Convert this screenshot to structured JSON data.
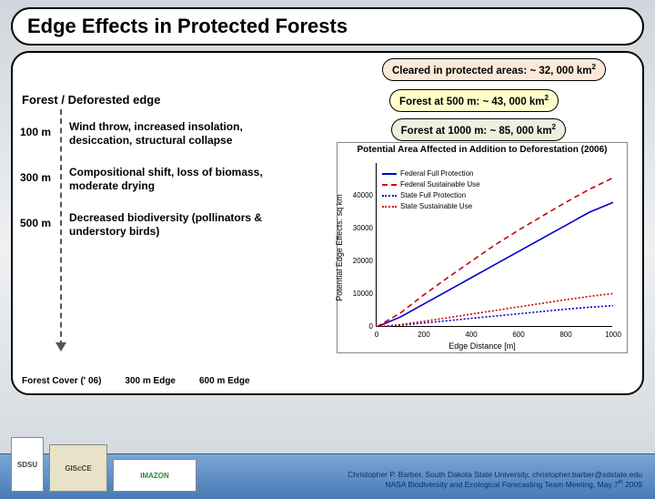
{
  "title": "Edge Effects in Protected Forests",
  "badges": {
    "cleared": "Cleared in protected areas: ~ 32, 000 km",
    "f500": "Forest at 500 m: ~ 43, 000 km",
    "f1000": "Forest at 1000 m: ~ 85, 000 km",
    "sup": "2"
  },
  "edge_header": "Forest / Deforested edge",
  "rows": {
    "d100": {
      "label": "100 m",
      "desc": "Wind throw, increased insolation, desiccation, structural collapse"
    },
    "d300": {
      "label": "300 m",
      "desc": "Compositional shift, loss of biomass, moderate drying"
    },
    "d500": {
      "label": "500 m",
      "desc": "Decreased biodiversity (pollinators & understory birds)"
    }
  },
  "bottom_labels": {
    "a": "Forest Cover (' 06)",
    "b": "300 m Edge",
    "c": "600 m Edge"
  },
  "chart": {
    "title": "Potential Area Affected in Addition to Deforestation (2006)",
    "xlabel": "Edge Distance [m]",
    "ylabel": "Potential Edge Effects: sq km",
    "xlim": [
      0,
      1000
    ],
    "ylim": [
      0,
      50000
    ],
    "xticks": [
      0,
      200,
      400,
      600,
      800,
      1000
    ],
    "yticks": [
      0,
      10000,
      20000,
      30000,
      40000
    ],
    "series": [
      {
        "name": "Federal Full Protection",
        "color": "#0000cc",
        "dash": "none",
        "data": [
          [
            0,
            0
          ],
          [
            100,
            3000
          ],
          [
            200,
            7000
          ],
          [
            300,
            11000
          ],
          [
            400,
            15000
          ],
          [
            500,
            19000
          ],
          [
            600,
            23000
          ],
          [
            700,
            27000
          ],
          [
            800,
            31000
          ],
          [
            900,
            35000
          ],
          [
            1000,
            38000
          ]
        ]
      },
      {
        "name": "Federal Sustainable Use",
        "color": "#cc0000",
        "dash": "6,4",
        "data": [
          [
            0,
            0
          ],
          [
            100,
            4200
          ],
          [
            200,
            9800
          ],
          [
            300,
            15000
          ],
          [
            400,
            20000
          ],
          [
            500,
            25000
          ],
          [
            600,
            29500
          ],
          [
            700,
            33800
          ],
          [
            800,
            38000
          ],
          [
            900,
            42000
          ],
          [
            1000,
            45500
          ]
        ]
      },
      {
        "name": "State Full Protection",
        "color": "#0000cc",
        "dash": "2,2",
        "data": [
          [
            0,
            0
          ],
          [
            100,
            500
          ],
          [
            200,
            1200
          ],
          [
            300,
            1900
          ],
          [
            400,
            2600
          ],
          [
            500,
            3300
          ],
          [
            600,
            4000
          ],
          [
            700,
            4700
          ],
          [
            800,
            5400
          ],
          [
            900,
            6000
          ],
          [
            1000,
            6500
          ]
        ]
      },
      {
        "name": "State Sustainable Use",
        "color": "#cc0000",
        "dash": "2,2",
        "data": [
          [
            0,
            0
          ],
          [
            100,
            700
          ],
          [
            200,
            1700
          ],
          [
            300,
            2800
          ],
          [
            400,
            3900
          ],
          [
            500,
            5000
          ],
          [
            600,
            6100
          ],
          [
            700,
            7200
          ],
          [
            800,
            8300
          ],
          [
            900,
            9300
          ],
          [
            1000,
            10200
          ]
        ]
      }
    ]
  },
  "logos": {
    "sdsu": "SDSU",
    "gisce": "GIScCE",
    "imazon": "IMAZON"
  },
  "credit": {
    "line1": "Christopher P. Barber, South Dakota State University, christopher.barber@sdstate.edu",
    "line2a": "NASA Biodiversity and Ecological Forecasting Team Meeting, May 7",
    "line2sup": "th",
    "line2b": " 2009"
  }
}
